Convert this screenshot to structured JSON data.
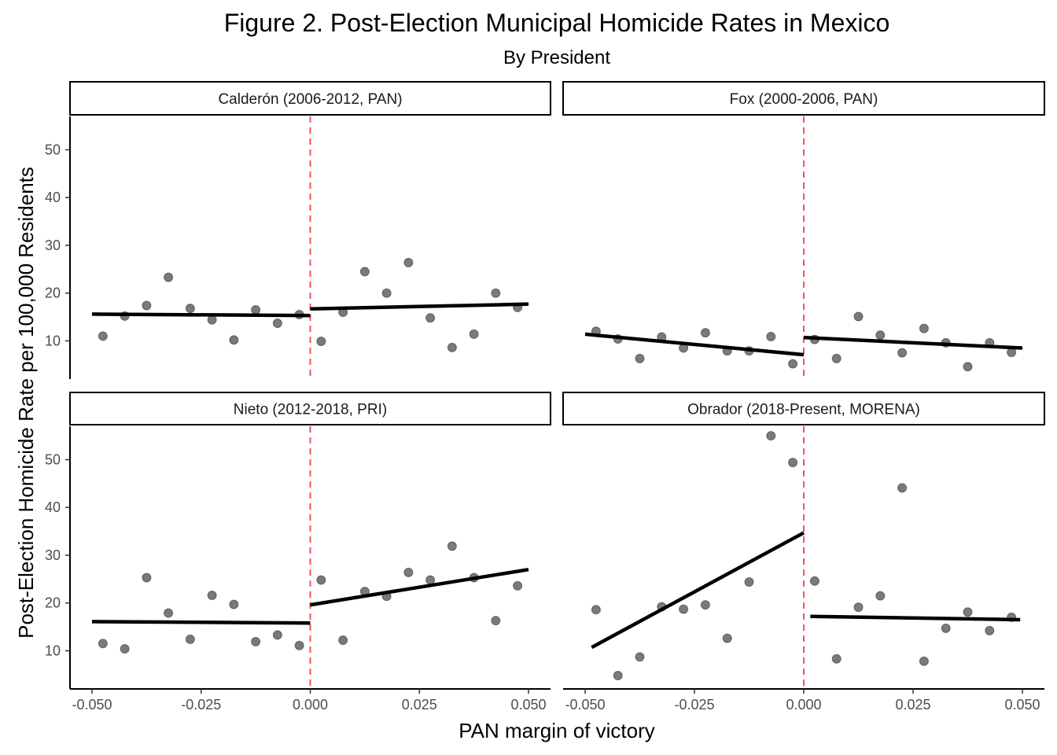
{
  "chart_data": {
    "type": "scatter",
    "title": "Figure 2. Post-Election Municipal Homicide Rates in Mexico",
    "subtitle": "By President",
    "xlabel": "PAN margin of victory",
    "ylabel": "Post-Election Homicide Rate per 100,000 Residents",
    "xlim": [
      -0.05,
      0.05
    ],
    "x_ticks": [
      "-0.050",
      "-0.025",
      "0.000",
      "0.025",
      "0.050"
    ],
    "x_tick_values": [
      -0.05,
      -0.025,
      0,
      0.025,
      0.05
    ],
    "y_ticks": [
      "10",
      "20",
      "30",
      "40",
      "50"
    ],
    "y_tick_values": [
      10,
      20,
      30,
      40,
      50
    ],
    "cutoff": 0,
    "colors": {
      "points": "#4d4d4d",
      "fit_line": "#000000",
      "cutoff_line": "#f8525a"
    },
    "grid": false,
    "legend": "none",
    "panels": [
      {
        "label": "Calderón (2006-2012, PAN)",
        "ylim": [
          2,
          57
        ],
        "points": [
          [
            -0.0475,
            11.0
          ],
          [
            -0.0425,
            15.2
          ],
          [
            -0.0375,
            17.4
          ],
          [
            -0.0325,
            23.3
          ],
          [
            -0.0275,
            16.8
          ],
          [
            -0.0225,
            14.4
          ],
          [
            -0.0175,
            10.2
          ],
          [
            -0.0125,
            16.5
          ],
          [
            -0.0075,
            13.7
          ],
          [
            -0.0025,
            15.5
          ],
          [
            0.0025,
            9.9
          ],
          [
            0.0075,
            16.0
          ],
          [
            0.0125,
            24.5
          ],
          [
            0.0175,
            20.0
          ],
          [
            0.0225,
            26.4
          ],
          [
            0.0275,
            14.8
          ],
          [
            0.0325,
            8.6
          ],
          [
            0.0375,
            11.4
          ],
          [
            0.0425,
            20.0
          ],
          [
            0.0475,
            17.0
          ]
        ],
        "fit_left": [
          [
            -0.05,
            15.6
          ],
          [
            0,
            15.3
          ]
        ],
        "fit_right": [
          [
            0,
            16.7
          ],
          [
            0.05,
            17.7
          ]
        ]
      },
      {
        "label": "Fox (2000-2006, PAN)",
        "ylim": [
          2,
          57
        ],
        "points": [
          [
            -0.0475,
            12.0
          ],
          [
            -0.0425,
            10.4
          ],
          [
            -0.0375,
            6.3
          ],
          [
            -0.0325,
            10.8
          ],
          [
            -0.0275,
            8.5
          ],
          [
            -0.0225,
            11.7
          ],
          [
            -0.0175,
            7.9
          ],
          [
            -0.0125,
            7.9
          ],
          [
            -0.0075,
            10.9
          ],
          [
            -0.0025,
            5.2
          ],
          [
            0.0025,
            10.3
          ],
          [
            0.0075,
            6.3
          ],
          [
            0.0125,
            15.1
          ],
          [
            0.0175,
            11.2
          ],
          [
            0.0225,
            7.5
          ],
          [
            0.0275,
            12.6
          ],
          [
            0.0325,
            9.6
          ],
          [
            0.0375,
            4.6
          ],
          [
            0.0425,
            9.6
          ],
          [
            0.0475,
            7.6
          ]
        ],
        "fit_left": [
          [
            -0.05,
            11.4
          ],
          [
            0,
            7.1
          ]
        ],
        "fit_right": [
          [
            0,
            10.7
          ],
          [
            0.05,
            8.5
          ]
        ]
      },
      {
        "label": "Nieto (2012-2018, PRI)",
        "ylim": [
          2,
          57
        ],
        "points": [
          [
            -0.0475,
            11.5
          ],
          [
            -0.0425,
            10.4
          ],
          [
            -0.0375,
            25.3
          ],
          [
            -0.0325,
            17.9
          ],
          [
            -0.0275,
            12.4
          ],
          [
            -0.0225,
            21.6
          ],
          [
            -0.0175,
            19.7
          ],
          [
            -0.0125,
            11.9
          ],
          [
            -0.0075,
            13.3
          ],
          [
            -0.0025,
            11.1
          ],
          [
            0.0025,
            24.8
          ],
          [
            0.0075,
            12.2
          ],
          [
            0.0125,
            22.4
          ],
          [
            0.0175,
            21.4
          ],
          [
            0.0225,
            26.4
          ],
          [
            0.0275,
            24.8
          ],
          [
            0.0325,
            31.9
          ],
          [
            0.0375,
            25.3
          ],
          [
            0.0425,
            16.3
          ],
          [
            0.0475,
            23.6
          ]
        ],
        "fit_left": [
          [
            -0.05,
            16.1
          ],
          [
            0,
            15.8
          ]
        ],
        "fit_right": [
          [
            0,
            19.6
          ],
          [
            0.05,
            27.0
          ]
        ]
      },
      {
        "label": "Obrador (2018-Present, MORENA)",
        "ylim": [
          2,
          57
        ],
        "points": [
          [
            -0.0475,
            18.6
          ],
          [
            -0.0425,
            4.8
          ],
          [
            -0.0375,
            8.7
          ],
          [
            -0.0325,
            19.2
          ],
          [
            -0.0275,
            18.7
          ],
          [
            -0.0225,
            19.6
          ],
          [
            -0.0175,
            12.6
          ],
          [
            -0.0125,
            24.4
          ],
          [
            -0.0075,
            55.0
          ],
          [
            -0.0025,
            49.4
          ],
          [
            0.0025,
            24.6
          ],
          [
            0.0075,
            8.3
          ],
          [
            0.0125,
            19.1
          ],
          [
            0.0175,
            21.5
          ],
          [
            0.0225,
            44.1
          ],
          [
            0.0275,
            7.8
          ],
          [
            0.0325,
            14.7
          ],
          [
            0.0375,
            18.1
          ],
          [
            0.0425,
            14.2
          ],
          [
            0.0475,
            17.0
          ]
        ],
        "fit_left": [
          [
            -0.0485,
            10.7
          ],
          [
            0,
            34.7
          ]
        ],
        "fit_right": [
          [
            0.0015,
            17.2
          ],
          [
            0.0495,
            16.5
          ]
        ]
      }
    ]
  }
}
